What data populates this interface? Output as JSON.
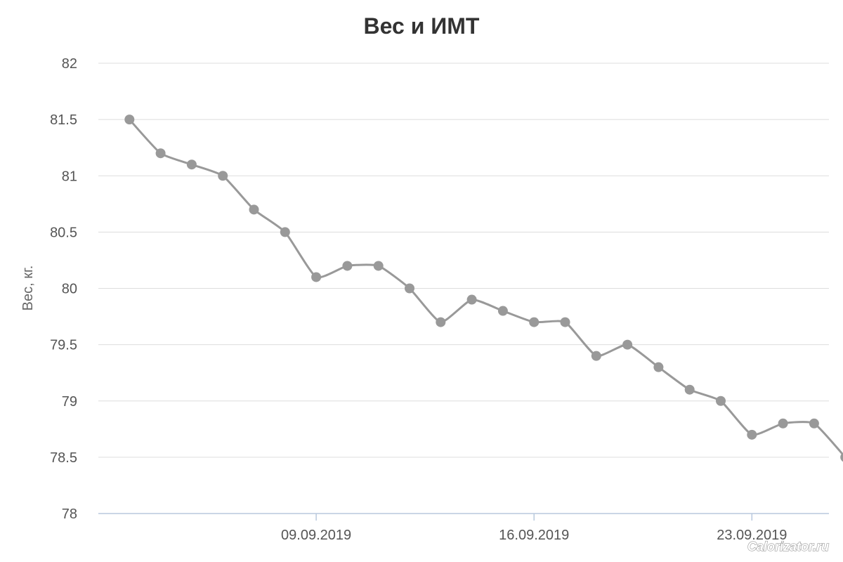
{
  "chart_data": {
    "type": "line",
    "title": "Вес и ИМТ",
    "ylabel": "Вес, кг.",
    "xlabel": "",
    "ylim": [
      78,
      82
    ],
    "yticks": [
      78,
      78.5,
      79,
      79.5,
      80,
      80.5,
      81,
      81.5,
      82
    ],
    "grid": true,
    "x": [
      "03.09.2019",
      "04.09.2019",
      "05.09.2019",
      "06.09.2019",
      "07.09.2019",
      "08.09.2019",
      "09.09.2019",
      "10.09.2019",
      "11.09.2019",
      "12.09.2019",
      "13.09.2019",
      "14.09.2019",
      "15.09.2019",
      "16.09.2019",
      "17.09.2019",
      "18.09.2019",
      "19.09.2019",
      "20.09.2019",
      "21.09.2019",
      "22.09.2019",
      "23.09.2019",
      "24.09.2019",
      "25.09.2019",
      "26.09.2019"
    ],
    "xtick_labels": [
      "09.09.2019",
      "16.09.2019",
      "23.09.2019"
    ],
    "xlim": [
      "02.09.2019",
      "26.09.2019"
    ],
    "series": [
      {
        "values": [
          81.5,
          81.2,
          81.1,
          81.0,
          80.7,
          80.5,
          80.1,
          80.2,
          80.2,
          80.0,
          79.7,
          79.9,
          79.8,
          79.7,
          79.7,
          79.4,
          79.5,
          79.3,
          79.1,
          79.0,
          78.7,
          78.8,
          78.8,
          78.5
        ],
        "color": "#999999"
      }
    ]
  },
  "watermark": "Calorizator.ru"
}
